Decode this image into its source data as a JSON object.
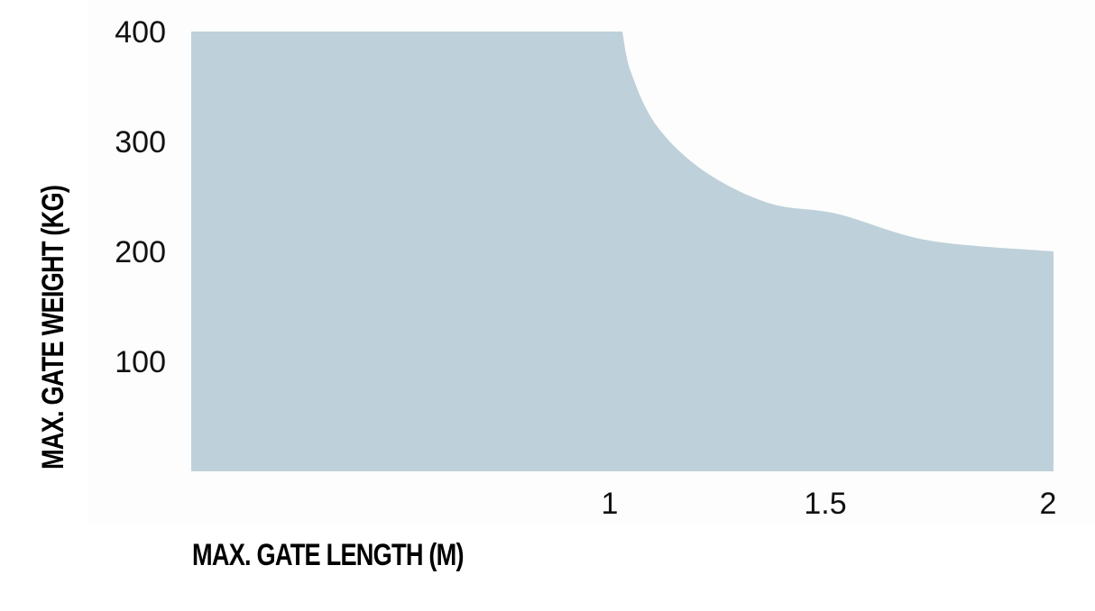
{
  "chart_data": {
    "type": "area",
    "xlabel": "MAX. GATE LENGTH (M)",
    "ylabel": "MAX. GATE WEIGHT (KG)",
    "xlim": [
      0,
      2
    ],
    "ylim": [
      0,
      400
    ],
    "x_ticks": [
      "1",
      "1.5",
      "2"
    ],
    "x_tick_values": [
      1,
      1.5,
      2
    ],
    "y_ticks": [
      "100",
      "200",
      "300",
      "400"
    ],
    "y_tick_values": [
      100,
      200,
      300,
      400
    ],
    "grid": false,
    "fill_color": "#bed1da",
    "series": [
      {
        "x": [
          0,
          1.0,
          1.02,
          1.08,
          1.19,
          1.34,
          1.5,
          1.71,
          2.0
        ],
        "y": [
          400,
          400,
          363,
          314,
          273,
          244,
          234,
          210,
          200
        ]
      }
    ]
  }
}
